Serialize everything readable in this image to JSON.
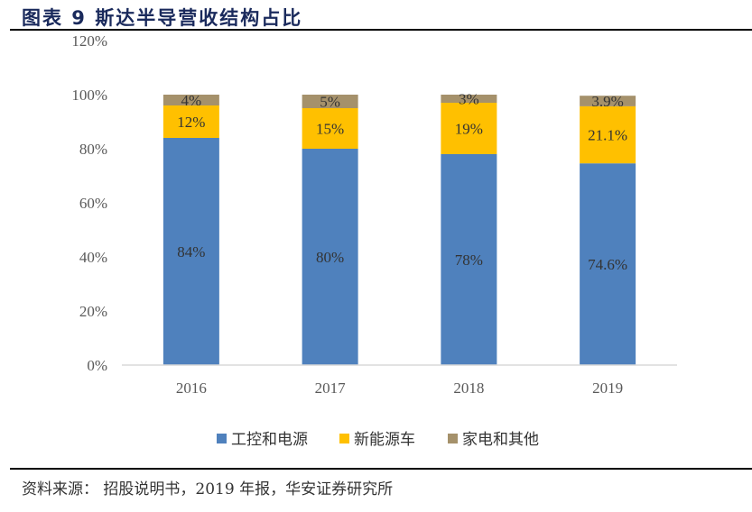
{
  "title": "图表 9 斯达半导营收结构占比",
  "source": "资料来源： 招股说明书，2019 年报，华安证券研究所",
  "chart_data": {
    "type": "bar",
    "stacked": true,
    "categories": [
      "2016",
      "2017",
      "2018",
      "2019"
    ],
    "series": [
      {
        "name": "工控和电源",
        "values": [
          84,
          80,
          78,
          74.6
        ],
        "labels": [
          "84%",
          "80%",
          "78%",
          "74.6%"
        ],
        "color": "#4F81BD"
      },
      {
        "name": "新能源车",
        "values": [
          12,
          15,
          19,
          21.1
        ],
        "labels": [
          "12%",
          "15%",
          "19%",
          "21.1%"
        ],
        "color": "#FFC000"
      },
      {
        "name": "家电和其他",
        "values": [
          4,
          5,
          3,
          3.9
        ],
        "labels": [
          "4%",
          "5%",
          "3%",
          "3.9%"
        ],
        "color": "#A5916B"
      }
    ],
    "ylim": [
      0,
      120
    ],
    "yticks": [
      "0%",
      "20%",
      "40%",
      "60%",
      "80%",
      "100%",
      "120%"
    ],
    "grid": false,
    "legend": "bottom"
  }
}
